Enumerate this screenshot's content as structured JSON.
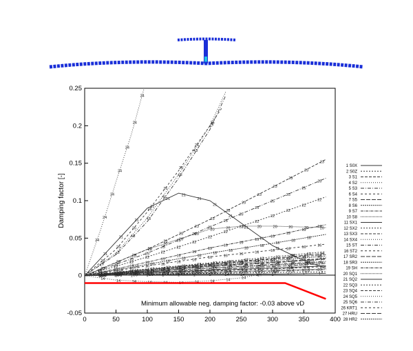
{
  "chart_data": {
    "type": "line",
    "ylabel": "Damping factor [-]",
    "xlim": [
      0,
      400
    ],
    "ylim": [
      -0.05,
      0.25
    ],
    "xticks": [
      0,
      50,
      100,
      150,
      200,
      250,
      300,
      350,
      400
    ],
    "yticks": [
      -0.05,
      0,
      0.05,
      0.1,
      0.15,
      0.2,
      0.25
    ],
    "xtick_labels": [
      "0",
      "50",
      "100",
      "150",
      "200",
      "250",
      "300",
      "350",
      "400"
    ],
    "ytick_labels": [
      "-0.05",
      "0",
      "0.05",
      "0.1",
      "0.15",
      "0.2",
      "0.25"
    ],
    "grid": false,
    "legend_position": "right",
    "annotation": "Minimum allowable neg. damping factor: -0.03 above vD",
    "limit_line": {
      "color": "#ff0000",
      "x": [
        0,
        320,
        385
      ],
      "y": [
        -0.01,
        -0.01,
        -0.031
      ]
    },
    "series": [
      {
        "name": "1 S0X",
        "label": "1",
        "x": [
          0,
          100,
          200,
          300,
          385
        ],
        "y": [
          0,
          0.001,
          0.002,
          0.002,
          0.003
        ]
      },
      {
        "name": "2 S0Z",
        "label": "2",
        "x": [
          0,
          100,
          200,
          300,
          385
        ],
        "y": [
          0,
          0.002,
          0.003,
          0.004,
          0.005
        ]
      },
      {
        "name": "3 S1",
        "label": "3",
        "x": [
          0,
          100,
          200,
          300,
          385
        ],
        "y": [
          0,
          0.006,
          0.013,
          0.018,
          0.023
        ]
      },
      {
        "name": "4 S2",
        "label": "4",
        "x": [
          0,
          50,
          100,
          150,
          200,
          225
        ],
        "y": [
          0,
          0.03,
          0.077,
          0.135,
          0.2,
          0.245
        ]
      },
      {
        "name": "5 S3",
        "label": "5",
        "x": [
          0,
          50,
          100,
          150,
          200,
          225
        ],
        "y": [
          0,
          0.028,
          0.072,
          0.13,
          0.195,
          0.24
        ]
      },
      {
        "name": "6 S4",
        "label": "6",
        "x": [
          0,
          100,
          200,
          300,
          385
        ],
        "y": [
          0,
          0.003,
          0.006,
          0.009,
          0.012
        ]
      },
      {
        "name": "7 S5",
        "label": "7",
        "x": [
          0,
          100,
          200,
          300,
          385
        ],
        "y": [
          0,
          0.004,
          0.008,
          0.012,
          0.016
        ]
      },
      {
        "name": "8 S6",
        "label": "8",
        "x": [
          0,
          100,
          200,
          300,
          385
        ],
        "y": [
          0,
          0.005,
          0.01,
          0.014,
          0.018
        ]
      },
      {
        "name": "9 S7",
        "label": "9",
        "x": [
          0,
          100,
          200,
          300,
          385
        ],
        "y": [
          0,
          0.002,
          0.004,
          0.006,
          0.008
        ]
      },
      {
        "name": "10 S8",
        "label": "10",
        "x": [
          0,
          100,
          200,
          300,
          385
        ],
        "y": [
          0,
          0.003,
          0.005,
          0.007,
          0.009
        ]
      },
      {
        "name": "11 SX1",
        "label": "11",
        "x": [
          0,
          100,
          200,
          300,
          385
        ],
        "y": [
          0,
          0.004,
          0.007,
          0.01,
          0.013
        ]
      },
      {
        "name": "12 SX2",
        "label": "12",
        "x": [
          0,
          100,
          200,
          300,
          385
        ],
        "y": [
          0,
          0.009,
          0.017,
          0.025,
          0.032
        ]
      },
      {
        "name": "13 SX3",
        "label": "13",
        "x": [
          0,
          100,
          200,
          300,
          385
        ],
        "y": [
          0,
          0.008,
          0.015,
          0.022,
          0.028
        ]
      },
      {
        "name": "14 SX4",
        "label": "14",
        "x": [
          0,
          50,
          100,
          150,
          200,
          250,
          300,
          385
        ],
        "y": [
          0,
          -0.006,
          -0.008,
          -0.009,
          -0.007,
          -0.003,
          0.005,
          0.024
        ]
      },
      {
        "name": "15 ST",
        "label": "15",
        "x": [
          0,
          100,
          200,
          300,
          385
        ],
        "y": [
          0,
          0.005,
          0.01,
          0.015,
          0.019
        ]
      },
      {
        "name": "16 ST2",
        "label": "16",
        "x": [
          0,
          100,
          200,
          300,
          385
        ],
        "y": [
          0,
          0.013,
          0.025,
          0.034,
          0.042
        ]
      },
      {
        "name": "17 SR2",
        "label": "17",
        "x": [
          0,
          100,
          200,
          300,
          385
        ],
        "y": [
          0,
          0.008,
          0.016,
          0.023,
          0.03
        ]
      },
      {
        "name": "18 SR3",
        "label": "18",
        "x": [
          0,
          100,
          200,
          300,
          385
        ],
        "y": [
          0,
          0.015,
          0.03,
          0.043,
          0.055
        ]
      },
      {
        "name": "19 SH",
        "label": "19",
        "x": [
          0,
          100,
          200,
          300,
          385
        ],
        "y": [
          0,
          0.018,
          0.037,
          0.053,
          0.068
        ]
      },
      {
        "name": "20 SQ1",
        "label": "20",
        "x": [
          0,
          100,
          200,
          250,
          300,
          385
        ],
        "y": [
          0,
          0.035,
          0.062,
          0.066,
          0.066,
          0.064
        ]
      },
      {
        "name": "21 SQ2",
        "label": "21",
        "x": [
          0,
          100,
          150,
          200,
          250,
          300,
          350,
          385
        ],
        "y": [
          0,
          0.09,
          0.11,
          0.1,
          0.07,
          0.04,
          0.02,
          0.01
        ]
      },
      {
        "name": "22 SQ3",
        "label": "22",
        "x": [
          0,
          100,
          200,
          300,
          385
        ],
        "y": [
          0,
          0.025,
          0.052,
          0.08,
          0.105
        ]
      },
      {
        "name": "23 SQ4",
        "label": "23",
        "x": [
          0,
          100,
          200,
          300,
          385
        ],
        "y": [
          0,
          0.035,
          0.075,
          0.118,
          0.155
        ]
      },
      {
        "name": "24 SQ5",
        "label": "24",
        "x": [
          0,
          25,
          50,
          75,
          95
        ],
        "y": [
          0,
          0.06,
          0.125,
          0.19,
          0.25
        ]
      },
      {
        "name": "25 SQ6",
        "label": "25",
        "x": [
          0,
          100,
          200,
          300,
          385
        ],
        "y": [
          0,
          0.03,
          0.065,
          0.1,
          0.13
        ]
      },
      {
        "name": "26 KRT1",
        "label": "26",
        "x": [
          0,
          50,
          100,
          150,
          200,
          220
        ],
        "y": [
          0,
          0.035,
          0.085,
          0.14,
          0.2,
          0.225
        ]
      },
      {
        "name": "27 HRU",
        "label": "27",
        "x": [
          0,
          100,
          200,
          300,
          385
        ],
        "y": [
          0,
          0.006,
          0.012,
          0.017,
          0.022
        ]
      },
      {
        "name": "28 HR2",
        "label": "28",
        "x": [
          0,
          100,
          200,
          300,
          385
        ],
        "y": [
          0,
          0.007,
          0.014,
          0.02,
          0.026
        ]
      }
    ]
  },
  "colors": {
    "model_blue": "#1a2fd8",
    "model_cyan": "#22c6e6",
    "curve": "#333333",
    "limit": "#ff0000",
    "axis": "#000000"
  }
}
